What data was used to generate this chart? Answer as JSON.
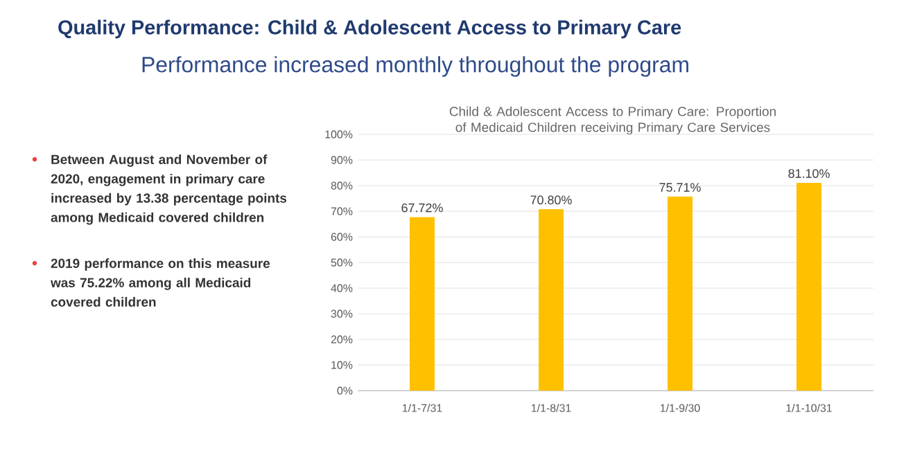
{
  "chart_data": {
    "type": "bar",
    "title": "Quality Performance: Child & Adolescent Access to Primary Care",
    "subtitle": "Performance increased monthly throughout the program",
    "annotations": [
      "Child & Adolescent Access to Primary Care: Proportion of Medicaid Children receiving Primary Care Services",
      "Between August and November of 2020, engagement in primary care increased by 13.38 percentage points among Medicaid covered children",
      "2019 performance on this measure was 75.22% among all Medicaid covered children"
    ],
    "categories": [
      "1/1-7/31",
      "1/1-8/31",
      "1/1-9/30",
      "1/1-10/31"
    ],
    "values": [
      67.72,
      70.8,
      75.71,
      81.1
    ],
    "value_labels": [
      "67.72%",
      "70.80%",
      "75.71%",
      "81.10%"
    ],
    "color": "#ffc000",
    "ylim": [
      0,
      100
    ],
    "yticks": [
      {
        "value": 0,
        "label": "0%"
      },
      {
        "value": 10,
        "label": "10%"
      },
      {
        "value": 20,
        "label": "20%"
      },
      {
        "value": 30,
        "label": "30%"
      },
      {
        "value": 40,
        "label": "40%"
      },
      {
        "value": 50,
        "label": "50%"
      },
      {
        "value": 60,
        "label": "60%"
      },
      {
        "value": 70,
        "label": "70%"
      },
      {
        "value": 80,
        "label": "80%"
      },
      {
        "value": 90,
        "label": "90%"
      },
      {
        "value": 100,
        "label": "100%"
      }
    ],
    "grid": "y"
  }
}
